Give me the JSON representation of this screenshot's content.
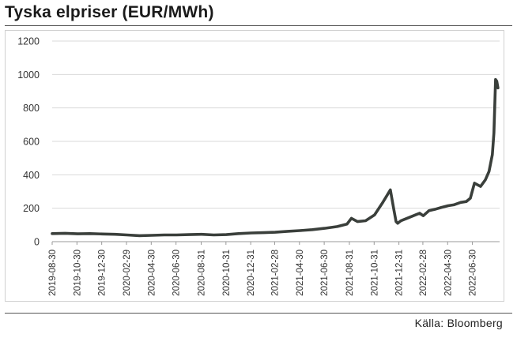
{
  "header": {
    "title": "Tyska elpriser (EUR/MWh)"
  },
  "footer": {
    "source": "Källa: Bloomberg"
  },
  "chart_data": {
    "type": "line",
    "title": "Tyska elpriser (EUR/MWh)",
    "xlabel": "",
    "ylabel": "",
    "ylim": [
      0,
      1200
    ],
    "yticks": [
      0,
      200,
      400,
      600,
      800,
      1000,
      1200
    ],
    "xlim": [
      "2019-08-30",
      "2022-09-05"
    ],
    "xticks": [
      "2019-08-30",
      "2019-10-30",
      "2019-12-30",
      "2020-02-29",
      "2020-04-30",
      "2020-06-30",
      "2020-08-31",
      "2020-10-31",
      "2020-12-31",
      "2021-02-28",
      "2021-04-30",
      "2021-06-30",
      "2021-08-31",
      "2021-10-31",
      "2021-12-31",
      "2022-02-28",
      "2022-04-30",
      "2022-06-30"
    ],
    "grid": "horizontal",
    "legend": "none",
    "color": "#3a3f3b",
    "series": [
      {
        "x": [
          "2019-08-30",
          "2019-10-01",
          "2019-11-01",
          "2019-12-01",
          "2020-01-01",
          "2020-02-01",
          "2020-03-01",
          "2020-04-01",
          "2020-05-01",
          "2020-06-01",
          "2020-07-01",
          "2020-08-01",
          "2020-09-01",
          "2020-10-01",
          "2020-11-01",
          "2020-12-01",
          "2021-01-01",
          "2021-02-01",
          "2021-03-01",
          "2021-04-01",
          "2021-05-01",
          "2021-06-01",
          "2021-07-01",
          "2021-08-01",
          "2021-08-25",
          "2021-09-05",
          "2021-09-20",
          "2021-10-10",
          "2021-11-01",
          "2021-11-20",
          "2021-12-10",
          "2021-12-18",
          "2021-12-24",
          "2021-12-28",
          "2022-01-05",
          "2022-01-20",
          "2022-02-10",
          "2022-02-20",
          "2022-03-01",
          "2022-03-15",
          "2022-04-01",
          "2022-04-15",
          "2022-05-01",
          "2022-05-15",
          "2022-06-01",
          "2022-06-15",
          "2022-06-25",
          "2022-07-05",
          "2022-07-20",
          "2022-08-01",
          "2022-08-10",
          "2022-08-18",
          "2022-08-22",
          "2022-08-26",
          "2022-08-29",
          "2022-09-01"
        ],
        "values": [
          48,
          50,
          47,
          48,
          46,
          44,
          40,
          36,
          38,
          40,
          40,
          42,
          44,
          40,
          42,
          48,
          52,
          54,
          56,
          62,
          66,
          72,
          80,
          90,
          105,
          140,
          120,
          125,
          160,
          230,
          310,
          200,
          120,
          110,
          125,
          140,
          160,
          170,
          155,
          185,
          195,
          205,
          215,
          220,
          235,
          240,
          260,
          350,
          330,
          370,
          420,
          520,
          650,
          970,
          960,
          920
        ]
      }
    ]
  }
}
